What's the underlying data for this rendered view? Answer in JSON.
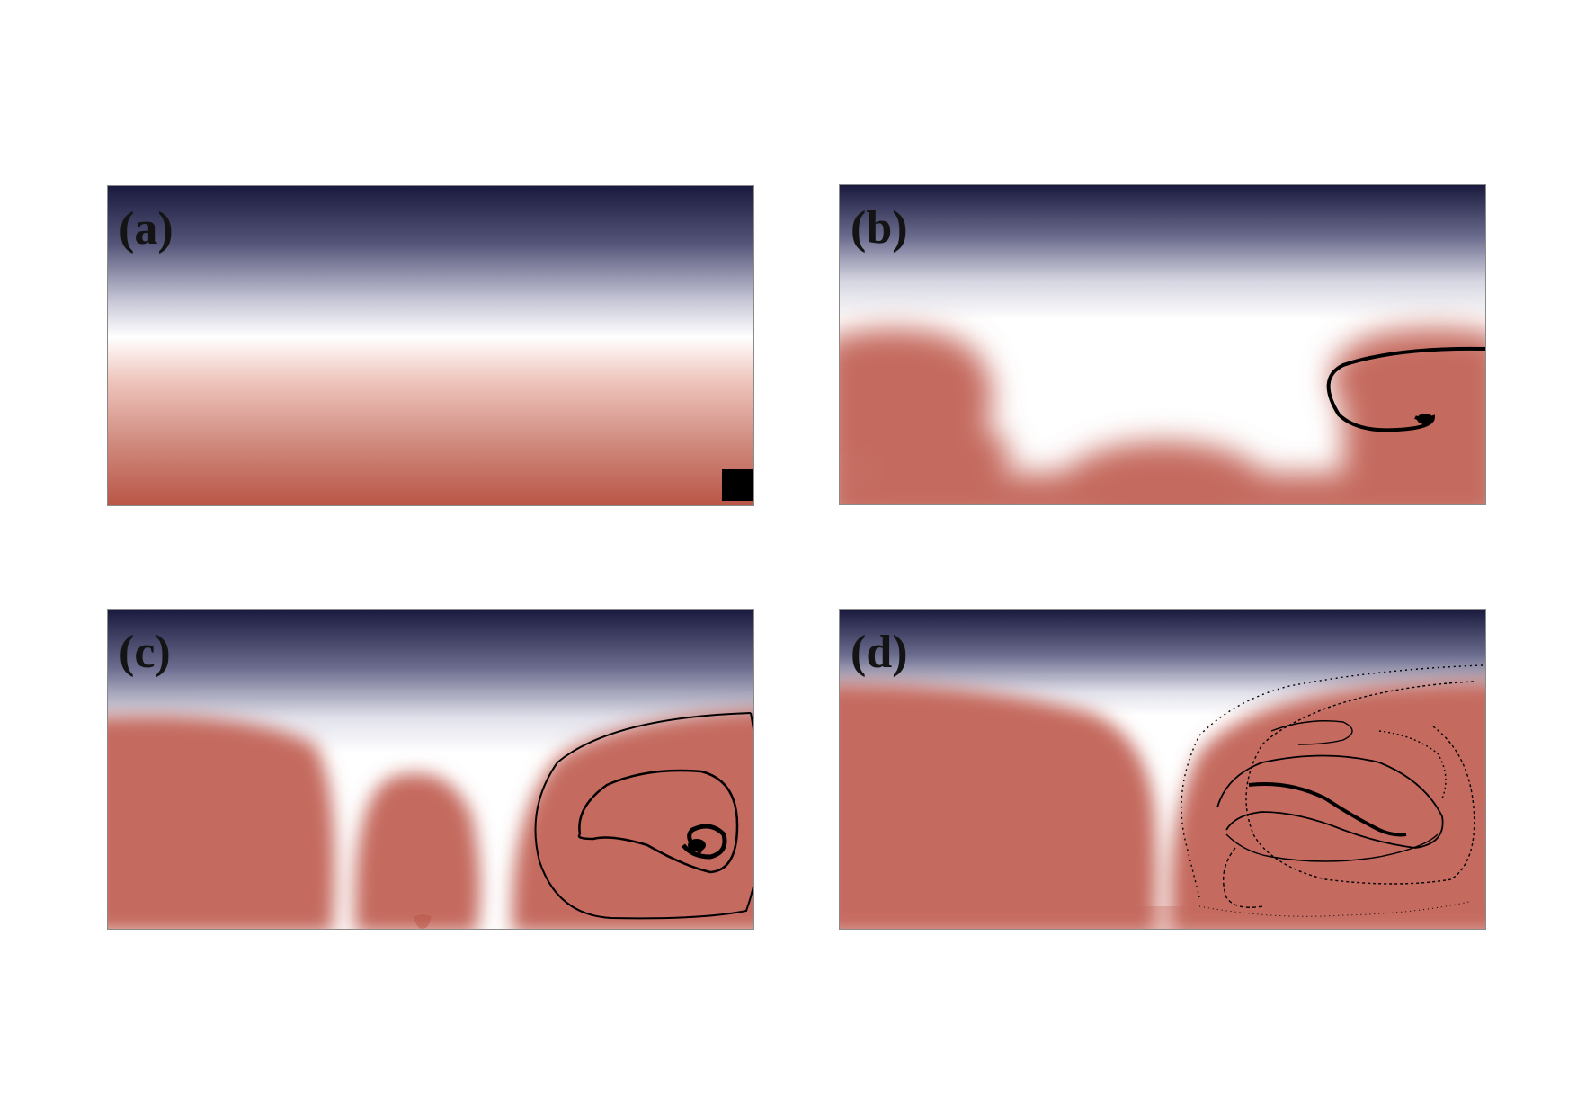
{
  "figure": {
    "panels": [
      {
        "id": "a",
        "label": "(a)"
      },
      {
        "id": "b",
        "label": "(b)"
      },
      {
        "id": "c",
        "label": "(c)"
      },
      {
        "id": "d",
        "label": "(d)"
      }
    ]
  },
  "colors": {
    "cold": "#1a1a3e",
    "neutral": "#ffffff",
    "hot": "#c56b5e",
    "hot_deep": "#b85445",
    "tracer": "#000000",
    "frame": "#8a8a8a"
  }
}
